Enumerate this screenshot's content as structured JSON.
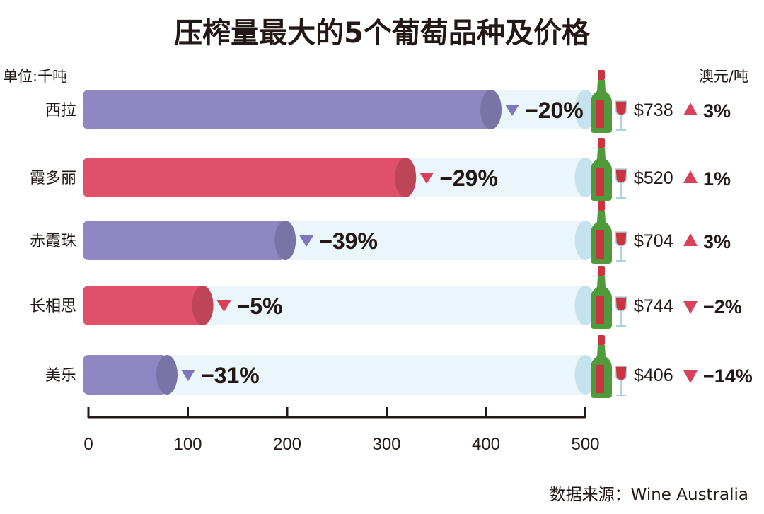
{
  "chart_data": {
    "type": "bar",
    "title": "压榨量最大的5个葡萄品种及价格",
    "ylabel": "单位:千吨",
    "price_unit": "澳元/吨",
    "source": "数据来源：Wine Australia",
    "xlim": [
      0,
      500
    ],
    "ticks": [
      "0",
      "100",
      "200",
      "300",
      "400",
      "500"
    ],
    "categories": [
      "西拉",
      "霞多丽",
      "赤霞珠",
      "长相思",
      "美乐"
    ],
    "values": [
      405,
      319,
      198,
      115,
      79
    ],
    "volume_change": [
      "−20%",
      "−29%",
      "−39%",
      "−5%",
      "−31%"
    ],
    "prices": [
      "$738",
      "$520",
      "$704",
      "$744",
      "$406"
    ],
    "price_change": [
      "3%",
      "1%",
      "3%",
      "−2%",
      "−14%"
    ],
    "price_direction": [
      "up",
      "up",
      "up",
      "down",
      "down"
    ],
    "bar_colors": [
      "#8f87c2",
      "#e05068",
      "#8f87c2",
      "#e05068",
      "#8f87c2"
    ],
    "colors": {
      "track": "#eaf6f9",
      "track_end": "#c5e2ee",
      "up": "#d9405a",
      "down": "#d9405a",
      "purple_arrow": "#7f77bb"
    }
  }
}
